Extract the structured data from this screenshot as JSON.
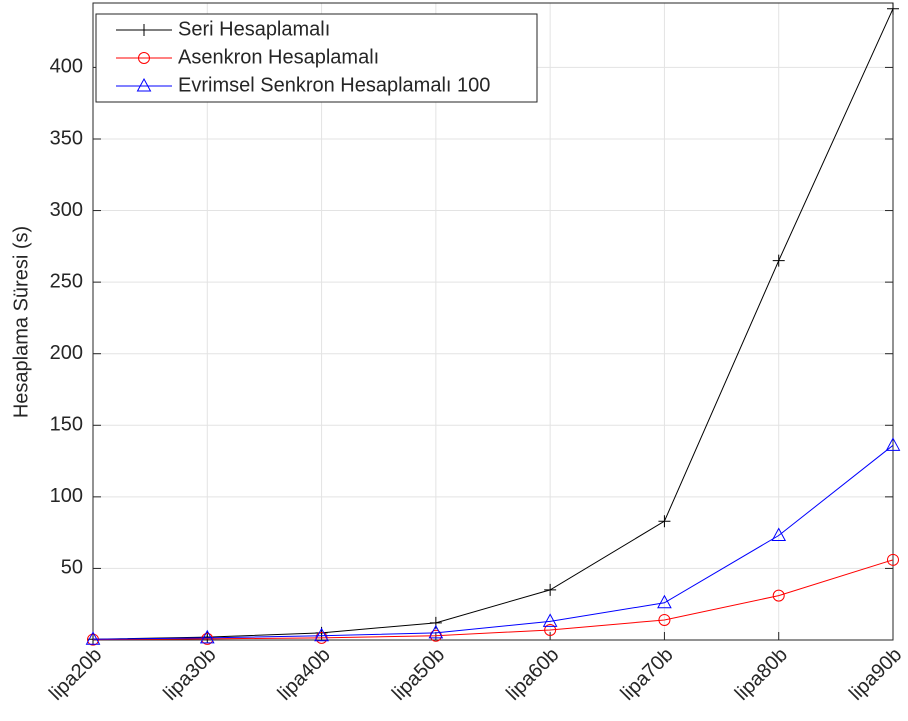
{
  "chart_data": {
    "type": "line",
    "y_label": "Hesaplama Süresi (s)",
    "categories": [
      "lipa20b",
      "lipa30b",
      "lipa40b",
      "lipa50b",
      "lipa60b",
      "lipa70b",
      "lipa80b",
      "lipa90b"
    ],
    "series": [
      {
        "name": "Seri Hesaplamalı",
        "color": "#000000",
        "marker": "plus",
        "values": [
          0.5,
          2,
          5,
          12,
          35,
          83,
          265,
          441
        ]
      },
      {
        "name": "Asenkron Hesaplamalı",
        "color": "#ff0000",
        "marker": "circle",
        "values": [
          0.3,
          0.8,
          1.5,
          3,
          7,
          14,
          31,
          56
        ]
      },
      {
        "name": "Evrimsel Senkron Hesaplamalı 100",
        "color": "#0000ff",
        "marker": "triangle",
        "values": [
          0.5,
          1.5,
          3,
          5,
          13,
          26,
          73,
          136
        ]
      }
    ],
    "ylim": [
      0,
      445
    ],
    "yticks": [
      50,
      100,
      150,
      200,
      250,
      300,
      350,
      400
    ],
    "grid": true,
    "legend": "top-left"
  }
}
